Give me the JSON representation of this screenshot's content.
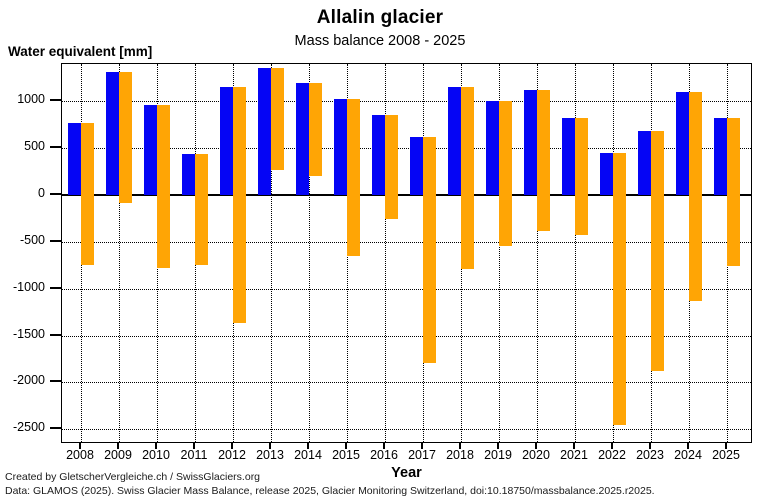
{
  "header": {
    "title": "Allalin glacier",
    "subtitle": "Mass balance 2008 - 2025"
  },
  "axes": {
    "y_label": "Water equivalent [mm]",
    "x_label": "Year"
  },
  "footer": {
    "credit": "Created by GletscherVergleiche.ch / SwissGlaciers.org",
    "data_source": "Data: GLAMOS (2025). Swiss Glacier Mass Balance, release 2025, Glacier Monitoring Switzerland, doi:10.18750/massbalance.2025.r2025."
  },
  "chart_data": {
    "type": "bar",
    "title": "Allalin glacier",
    "subtitle": "Mass balance 2008 - 2025",
    "xlabel": "Year",
    "ylabel": "Water equivalent [mm]",
    "categories": [
      2008,
      2009,
      2010,
      2011,
      2012,
      2013,
      2014,
      2015,
      2016,
      2017,
      2018,
      2019,
      2020,
      2021,
      2022,
      2023,
      2024,
      2025
    ],
    "series": [
      {
        "name": "winter balance (blue bars, drawn from 0 up)",
        "color": "#0505f5",
        "values": [
          770,
          1310,
          960,
          440,
          1150,
          1360,
          1200,
          1030,
          860,
          620,
          1150,
          1010,
          1120,
          820,
          450,
          690,
          1100,
          820
        ]
      },
      {
        "name": "annual balance (orange bars, drawn from top of blue bar down to annual value)",
        "color": "#ffa505",
        "values": [
          -750,
          -80,
          -780,
          -750,
          -1370,
          270,
          200,
          -650,
          -260,
          -1790,
          -790,
          -540,
          -380,
          -430,
          -2450,
          -1880,
          -1130,
          -760
        ]
      }
    ],
    "ylim": [
      -2625,
      1400
    ],
    "yticks": [
      1000,
      500,
      0,
      -500,
      -1000,
      -1500,
      -2000,
      -2500
    ],
    "grid": true,
    "legend_position": "none"
  }
}
